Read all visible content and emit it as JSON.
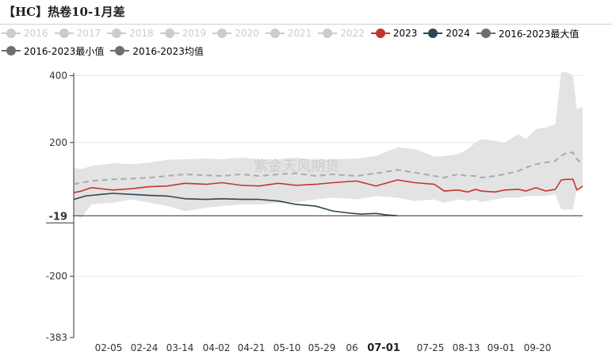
{
  "title": "【HC】热卷10-1月差",
  "watermark": "紫金天风期货",
  "current_marker_label": "-19",
  "colors": {
    "band": "#e3e3e3",
    "y2023": "#c23531",
    "y2024": "#2f4554",
    "avg": "#aaaaaa",
    "legend_off": "#cccccc",
    "axis": "#333333",
    "grid": "#e8e8e8"
  },
  "legend": [
    {
      "name": "2016",
      "active": false,
      "color": "#cccccc"
    },
    {
      "name": "2017",
      "active": false,
      "color": "#cccccc"
    },
    {
      "name": "2018",
      "active": false,
      "color": "#cccccc"
    },
    {
      "name": "2019",
      "active": false,
      "color": "#cccccc"
    },
    {
      "name": "2020",
      "active": false,
      "color": "#cccccc"
    },
    {
      "name": "2021",
      "active": false,
      "color": "#cccccc"
    },
    {
      "name": "2022",
      "active": false,
      "color": "#cccccc"
    },
    {
      "name": "2023",
      "active": true,
      "color": "#c23531"
    },
    {
      "name": "2024",
      "active": true,
      "color": "#2f4554"
    },
    {
      "name": "2016-2023最大值",
      "active": true,
      "color": "#6e6e6e"
    },
    {
      "name": "2016-2023最小值",
      "active": true,
      "color": "#6e6e6e"
    },
    {
      "name": "2016-2023均值",
      "active": true,
      "color": "#6e6e6e"
    }
  ],
  "chart_data": {
    "type": "line",
    "x_axis_type": "date (MM-DD)",
    "x_ticks": [
      "02-05",
      "02-24",
      "03-14",
      "04-02",
      "04-21",
      "05-10",
      "05-29",
      "06",
      "07-01",
      "07-25",
      "08-13",
      "09-01",
      "09-20"
    ],
    "highlighted_x_tick": "07-01",
    "ylim": [
      -383,
      408
    ],
    "y_ticks": [
      400,
      200,
      -19,
      -200,
      -383
    ],
    "grid": true,
    "legend_position": "top",
    "series": [
      {
        "name": "2016-2023最大值",
        "role": "band_upper",
        "x": [
          "01-16",
          "01-20",
          "01-25",
          "02-05",
          "02-15",
          "02-24",
          "03-05",
          "03-14",
          "03-25",
          "04-02",
          "04-12",
          "04-21",
          "05-01",
          "05-10",
          "05-20",
          "05-29",
          "06-10",
          "06-20",
          "07-01",
          "07-10",
          "07-20",
          "07-25",
          "08-01",
          "08-06",
          "08-10",
          "08-13",
          "08-20",
          "08-25",
          "09-01",
          "09-05",
          "09-10",
          "09-15",
          "09-20",
          "09-23",
          "09-26",
          "09-29",
          "10-01",
          "10-03",
          "10-04"
        ],
        "values": [
          125,
          120,
          130,
          138,
          135,
          140,
          148,
          150,
          152,
          150,
          155,
          150,
          150,
          155,
          148,
          150,
          152,
          160,
          185,
          180,
          158,
          160,
          165,
          180,
          200,
          210,
          205,
          200,
          225,
          210,
          240,
          245,
          255,
          410,
          410,
          400,
          300,
          305,
          305
        ]
      },
      {
        "name": "2016-2023最小值",
        "role": "band_lower",
        "x": [
          "01-16",
          "01-20",
          "01-25",
          "02-05",
          "02-15",
          "02-24",
          "03-05",
          "03-14",
          "03-25",
          "04-02",
          "04-12",
          "04-21",
          "05-01",
          "05-10",
          "05-20",
          "05-29",
          "06-10",
          "06-20",
          "07-01",
          "07-10",
          "07-20",
          "07-25",
          "08-01",
          "08-06",
          "08-10",
          "08-13",
          "08-20",
          "08-25",
          "09-01",
          "09-05",
          "09-10",
          "09-15",
          "09-20",
          "09-23",
          "09-26",
          "09-29",
          "10-01",
          "10-03",
          "10-04"
        ],
        "values": [
          -15,
          -25,
          15,
          20,
          30,
          20,
          10,
          -5,
          5,
          10,
          15,
          15,
          20,
          22,
          30,
          35,
          30,
          40,
          35,
          25,
          30,
          20,
          30,
          25,
          30,
          22,
          30,
          35,
          35,
          40,
          40,
          40,
          45,
          0,
          0,
          0,
          60,
          65,
          65
        ]
      },
      {
        "name": "2016-2023均值",
        "role": "average",
        "x": [
          "01-16",
          "01-20",
          "01-25",
          "02-05",
          "02-15",
          "02-24",
          "03-05",
          "03-14",
          "03-25",
          "04-02",
          "04-12",
          "04-21",
          "05-01",
          "05-10",
          "05-20",
          "05-29",
          "06-10",
          "06-20",
          "07-01",
          "07-10",
          "07-20",
          "07-25",
          "08-01",
          "08-06",
          "08-10",
          "08-13",
          "08-20",
          "08-25",
          "09-01",
          "09-05",
          "09-10",
          "09-15",
          "09-20",
          "09-23",
          "09-26",
          "09-29",
          "10-01",
          "10-03",
          "10-04"
        ],
        "values": [
          75,
          80,
          85,
          90,
          92,
          95,
          100,
          105,
          102,
          100,
          105,
          100,
          105,
          108,
          100,
          105,
          100,
          108,
          118,
          110,
          100,
          95,
          105,
          100,
          100,
          95,
          100,
          105,
          115,
          125,
          135,
          140,
          145,
          160,
          170,
          170,
          150,
          140,
          140
        ]
      },
      {
        "name": "2023",
        "role": "line",
        "x": [
          "01-16",
          "01-20",
          "01-25",
          "02-05",
          "02-15",
          "02-24",
          "03-05",
          "03-14",
          "03-25",
          "04-02",
          "04-12",
          "04-21",
          "05-01",
          "05-10",
          "05-20",
          "05-29",
          "06-10",
          "06-20",
          "07-01",
          "07-10",
          "07-20",
          "07-25",
          "08-01",
          "08-06",
          "08-10",
          "08-13",
          "08-20",
          "08-25",
          "09-01",
          "09-05",
          "09-10",
          "09-15",
          "09-20",
          "09-23",
          "09-26",
          "09-29",
          "10-01",
          "10-03",
          "10-04"
        ],
        "values": [
          50,
          55,
          65,
          58,
          62,
          68,
          70,
          78,
          75,
          80,
          72,
          70,
          78,
          72,
          75,
          80,
          85,
          70,
          88,
          80,
          75,
          55,
          58,
          52,
          60,
          55,
          52,
          58,
          60,
          55,
          65,
          55,
          60,
          88,
          90,
          90,
          58,
          65,
          70
        ]
      },
      {
        "name": "2024",
        "role": "line",
        "x": [
          "01-16",
          "01-22",
          "01-30",
          "02-05",
          "02-15",
          "02-24",
          "03-05",
          "03-14",
          "03-25",
          "04-02",
          "04-12",
          "04-21",
          "05-01",
          "05-10",
          "05-20",
          "05-29",
          "06-05",
          "06-12",
          "06-20",
          "06-25",
          "07-01"
        ],
        "values": [
          30,
          40,
          45,
          48,
          45,
          42,
          40,
          32,
          30,
          32,
          30,
          30,
          25,
          15,
          10,
          -5,
          -10,
          -14,
          -12,
          -16,
          -19
        ]
      }
    ]
  }
}
